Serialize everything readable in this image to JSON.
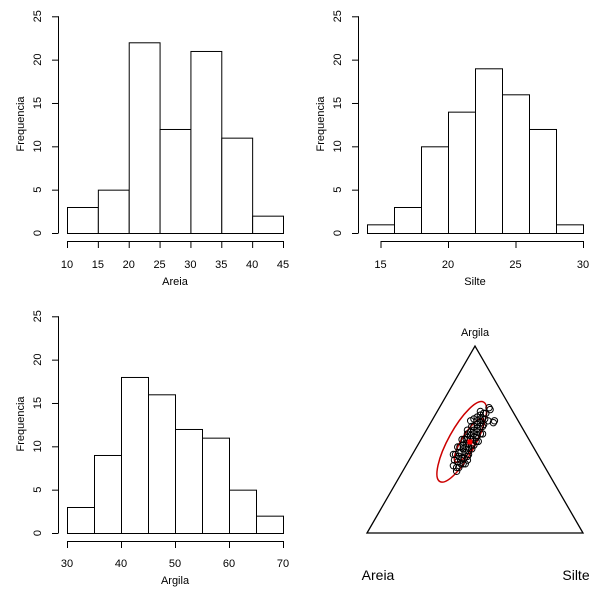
{
  "chart_data": [
    {
      "type": "bar",
      "subtype": "histogram",
      "title": "",
      "xlabel": "Areia",
      "ylabel": "Frequencia",
      "bin_edges": [
        10,
        15,
        20,
        25,
        30,
        35,
        40,
        45
      ],
      "values": [
        3,
        5,
        22,
        12,
        21,
        11,
        2
      ],
      "xticks": [
        10,
        15,
        20,
        25,
        30,
        35,
        40,
        45
      ],
      "yticks": [
        0,
        5,
        10,
        15,
        20,
        25
      ],
      "xlim": [
        10,
        45
      ],
      "ylim": [
        0,
        25
      ],
      "grid": false
    },
    {
      "type": "bar",
      "subtype": "histogram",
      "title": "",
      "xlabel": "Silte",
      "ylabel": "Frequencia",
      "bin_edges": [
        14,
        16,
        18,
        20,
        22,
        24,
        26,
        28,
        30
      ],
      "values": [
        1,
        3,
        10,
        14,
        19,
        16,
        12,
        1
      ],
      "xticks": [
        15,
        20,
        25,
        30
      ],
      "yticks": [
        0,
        5,
        10,
        15,
        20,
        25
      ],
      "xlim": [
        14,
        30
      ],
      "ylim": [
        0,
        25
      ],
      "grid": false
    },
    {
      "type": "bar",
      "subtype": "histogram",
      "title": "",
      "xlabel": "Argila",
      "ylabel": "Frequencia",
      "bin_edges": [
        30,
        35,
        40,
        45,
        50,
        55,
        60,
        65,
        70
      ],
      "values": [
        3,
        9,
        18,
        16,
        12,
        11,
        5,
        2
      ],
      "xticks": [
        30,
        40,
        50,
        60,
        70
      ],
      "yticks": [
        0,
        5,
        10,
        15,
        20,
        25
      ],
      "xlim": [
        30,
        70
      ],
      "ylim": [
        0,
        25
      ],
      "grid": false
    },
    {
      "type": "scatter",
      "subtype": "ternary",
      "title": "",
      "vertex_labels": {
        "bottom_left": "Areia",
        "bottom_right": "Silte",
        "top": "Argila"
      },
      "center": {
        "Areia": 28.0,
        "Silte": 23.3,
        "Argila": 48.7
      },
      "center_color": "#ff0000",
      "ellipse_color": "#cc0000",
      "point_color": "#000000",
      "ellipses": [
        {
          "name": "inner",
          "from": {
            "Areia": 40.0,
            "Silte": 22.0,
            "Argila": 38.0
          },
          "to": {
            "Areia": 16.0,
            "Silte": 23.0,
            "Argila": 61.0
          },
          "width_pct": 5.5
        },
        {
          "name": "outer",
          "from": {
            "Areia": 52.5,
            "Silte": 20.0,
            "Argila": 27.5
          },
          "to": {
            "Areia": 11.0,
            "Silte": 19.0,
            "Argila": 70.0
          },
          "width_pct": 11.5
        }
      ],
      "points": [
        {
          "Areia": 42,
          "Silte": 22,
          "Argila": 36
        },
        {
          "Areia": 41,
          "Silte": 24,
          "Argila": 35
        },
        {
          "Areia": 40,
          "Silte": 21,
          "Argila": 39
        },
        {
          "Areia": 40,
          "Silte": 25,
          "Argila": 35
        },
        {
          "Areia": 39,
          "Silte": 23,
          "Argila": 38
        },
        {
          "Areia": 38,
          "Silte": 20,
          "Argila": 42
        },
        {
          "Areia": 38,
          "Silte": 25,
          "Argila": 37
        },
        {
          "Areia": 37,
          "Silte": 22,
          "Argila": 41
        },
        {
          "Areia": 37,
          "Silte": 26,
          "Argila": 37
        },
        {
          "Areia": 36,
          "Silte": 24,
          "Argila": 40
        },
        {
          "Areia": 36,
          "Silte": 21,
          "Argila": 43
        },
        {
          "Areia": 35,
          "Silte": 25,
          "Argila": 40
        },
        {
          "Areia": 35,
          "Silte": 22,
          "Argila": 43
        },
        {
          "Areia": 34,
          "Silte": 27,
          "Argila": 39
        },
        {
          "Areia": 34,
          "Silte": 20,
          "Argila": 46
        },
        {
          "Areia": 33,
          "Silte": 24,
          "Argila": 43
        },
        {
          "Areia": 33,
          "Silte": 22,
          "Argila": 45
        },
        {
          "Areia": 32,
          "Silte": 26,
          "Argila": 42
        },
        {
          "Areia": 32,
          "Silte": 21,
          "Argila": 47
        },
        {
          "Areia": 31,
          "Silte": 23,
          "Argila": 46
        },
        {
          "Areia": 31,
          "Silte": 25,
          "Argila": 44
        },
        {
          "Areia": 30,
          "Silte": 22,
          "Argila": 48
        },
        {
          "Areia": 30,
          "Silte": 24,
          "Argila": 46
        },
        {
          "Areia": 30,
          "Silte": 20,
          "Argila": 50
        },
        {
          "Areia": 29,
          "Silte": 26,
          "Argila": 45
        },
        {
          "Areia": 29,
          "Silte": 23,
          "Argila": 48
        },
        {
          "Areia": 28,
          "Silte": 21,
          "Argila": 51
        },
        {
          "Areia": 28,
          "Silte": 25,
          "Argila": 47
        },
        {
          "Areia": 27,
          "Silte": 23,
          "Argila": 50
        },
        {
          "Areia": 27,
          "Silte": 20,
          "Argila": 53
        },
        {
          "Areia": 26,
          "Silte": 24,
          "Argila": 50
        },
        {
          "Areia": 26,
          "Silte": 22,
          "Argila": 52
        },
        {
          "Areia": 25,
          "Silte": 26,
          "Argila": 49
        },
        {
          "Areia": 25,
          "Silte": 21,
          "Argila": 54
        },
        {
          "Areia": 24,
          "Silte": 23,
          "Argila": 53
        },
        {
          "Areia": 24,
          "Silte": 25,
          "Argila": 51
        },
        {
          "Areia": 23,
          "Silte": 22,
          "Argila": 55
        },
        {
          "Areia": 23,
          "Silte": 20,
          "Argila": 57
        },
        {
          "Areia": 22,
          "Silte": 24,
          "Argila": 54
        },
        {
          "Areia": 22,
          "Silte": 21,
          "Argila": 57
        },
        {
          "Areia": 21,
          "Silte": 23,
          "Argila": 56
        },
        {
          "Areia": 21,
          "Silte": 26,
          "Argila": 53
        },
        {
          "Areia": 20,
          "Silte": 22,
          "Argila": 58
        },
        {
          "Areia": 20,
          "Silte": 19,
          "Argila": 61
        },
        {
          "Areia": 19,
          "Silte": 24,
          "Argila": 57
        },
        {
          "Areia": 19,
          "Silte": 21,
          "Argila": 60
        },
        {
          "Areia": 18,
          "Silte": 23,
          "Argila": 59
        },
        {
          "Areia": 18,
          "Silte": 20,
          "Argila": 62
        },
        {
          "Areia": 17,
          "Silte": 22,
          "Argila": 61
        },
        {
          "Areia": 17,
          "Silte": 25,
          "Argila": 58
        },
        {
          "Areia": 16,
          "Silte": 21,
          "Argila": 63
        },
        {
          "Areia": 16,
          "Silte": 23,
          "Argila": 61
        },
        {
          "Areia": 15,
          "Silte": 20,
          "Argila": 65
        },
        {
          "Areia": 15,
          "Silte": 24,
          "Argila": 61
        },
        {
          "Areia": 14,
          "Silte": 22,
          "Argila": 64
        },
        {
          "Areia": 14,
          "Silte": 26,
          "Argila": 60
        },
        {
          "Areia": 13,
          "Silte": 23,
          "Argila": 64
        },
        {
          "Areia": 12,
          "Silte": 29,
          "Argila": 59
        },
        {
          "Areia": 11,
          "Silte": 29,
          "Argila": 60
        },
        {
          "Areia": 10,
          "Silte": 24,
          "Argila": 66
        },
        {
          "Areia": 10,
          "Silte": 23,
          "Argila": 67
        },
        {
          "Areia": 33,
          "Silte": 26,
          "Argila": 41
        },
        {
          "Areia": 36,
          "Silte": 27,
          "Argila": 37
        },
        {
          "Areia": 27,
          "Silte": 26,
          "Argila": 47
        },
        {
          "Areia": 24,
          "Silte": 27,
          "Argila": 49
        },
        {
          "Areia": 20,
          "Silte": 27,
          "Argila": 53
        },
        {
          "Areia": 39,
          "Silte": 19,
          "Argila": 42
        },
        {
          "Areia": 35,
          "Silte": 19,
          "Argila": 46
        },
        {
          "Areia": 31,
          "Silte": 19,
          "Argila": 50
        },
        {
          "Areia": 26,
          "Silte": 19,
          "Argila": 55
        },
        {
          "Areia": 22,
          "Silte": 18,
          "Argila": 60
        },
        {
          "Areia": 37,
          "Silte": 24,
          "Argila": 39
        },
        {
          "Areia": 29,
          "Silte": 21,
          "Argila": 50
        },
        {
          "Areia": 23,
          "Silte": 25,
          "Argila": 52
        },
        {
          "Areia": 18,
          "Silte": 25,
          "Argila": 57
        },
        {
          "Areia": 42,
          "Silte": 25,
          "Argila": 33
        }
      ]
    }
  ]
}
